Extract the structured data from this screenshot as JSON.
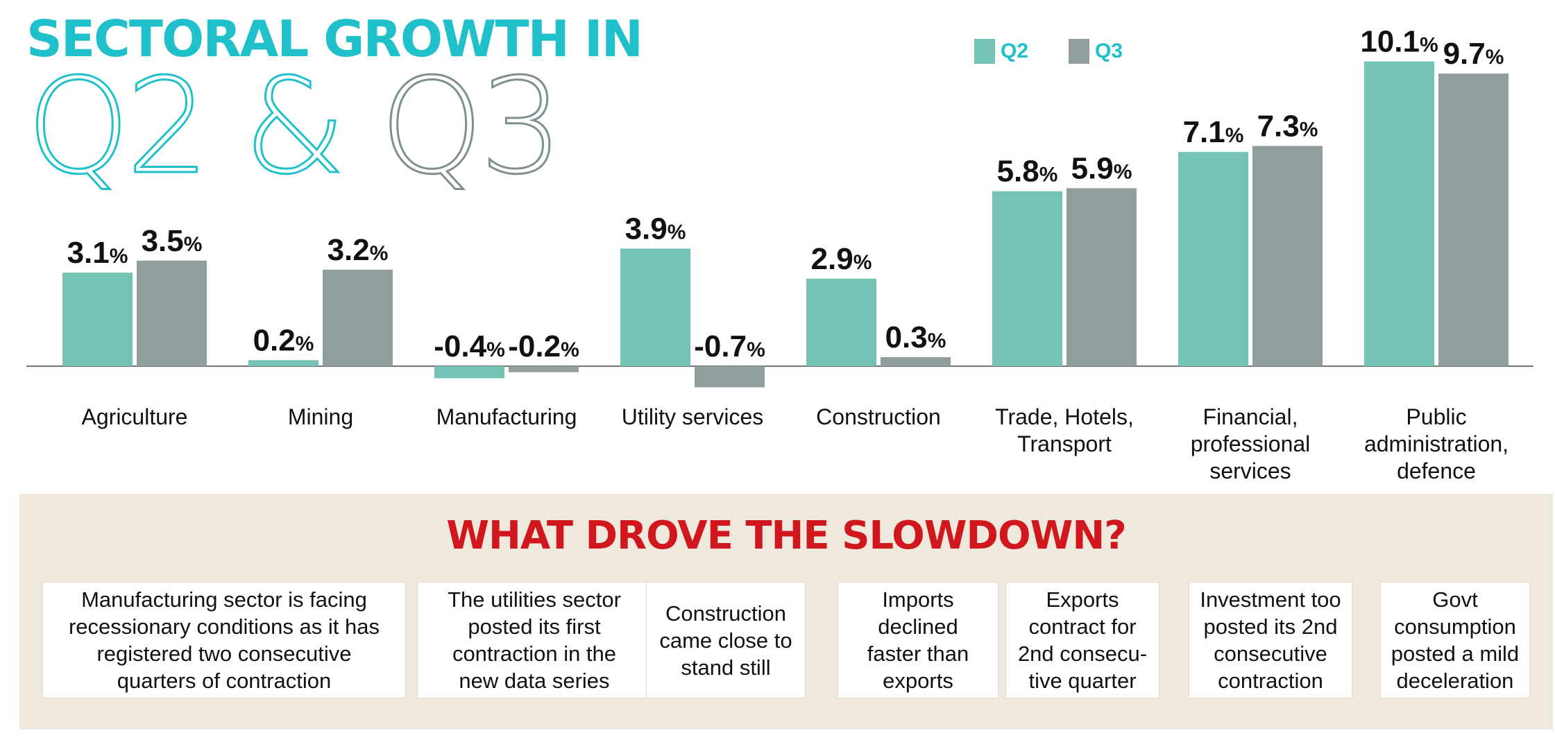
{
  "title": {
    "line1": "SECTORAL GROWTH IN",
    "q2": "Q2",
    "amp": "&",
    "q3": "Q3"
  },
  "colors": {
    "q2": "#75c2b6",
    "q3": "#909f9e",
    "accent": "#1fc0c9",
    "red": "#d0171e",
    "panel": "#efe8dc"
  },
  "legend": [
    {
      "label": "Q2",
      "color": "#75c2b6"
    },
    {
      "label": "Q3",
      "color": "#909f9e"
    }
  ],
  "chart_data": {
    "type": "bar",
    "categories": [
      [
        "Agriculture"
      ],
      [
        "Mining"
      ],
      [
        "Manufacturing"
      ],
      [
        "Utility services"
      ],
      [
        "Construction"
      ],
      [
        "Trade, Hotels,",
        "Transport"
      ],
      [
        "Financial,",
        "professional",
        "services"
      ],
      [
        "Public",
        "administration,",
        "defence"
      ]
    ],
    "series": [
      {
        "name": "Q2",
        "values": [
          3.1,
          0.2,
          -0.4,
          3.9,
          2.9,
          5.8,
          7.1,
          10.1
        ]
      },
      {
        "name": "Q3",
        "values": [
          3.5,
          3.2,
          -0.2,
          -0.7,
          0.3,
          5.9,
          7.3,
          9.7
        ]
      }
    ],
    "value_suffix": "%",
    "ylim": [
      -1,
      11
    ],
    "grid": false,
    "legend_position": "top-right"
  },
  "slowdown": {
    "title": "WHAT DROVE THE SLOWDOWN?",
    "reasons": [
      "Manufacturing sector is facing\nrecessionary conditions as it has\nregistered two consecutive\nquarters of contraction",
      "The utilities sector\nposted its first\ncontraction in the\nnew data series",
      "Construction\ncame close to\nstand still",
      "Imports\ndeclined\nfaster than\nexports",
      "Exports\ncontract for\n2nd consecu-\ntive quarter",
      "Investment too\nposted its 2nd\nconsecutive\ncontraction",
      "Govt\nconsumption\nposted a mild\ndeceleration"
    ]
  }
}
